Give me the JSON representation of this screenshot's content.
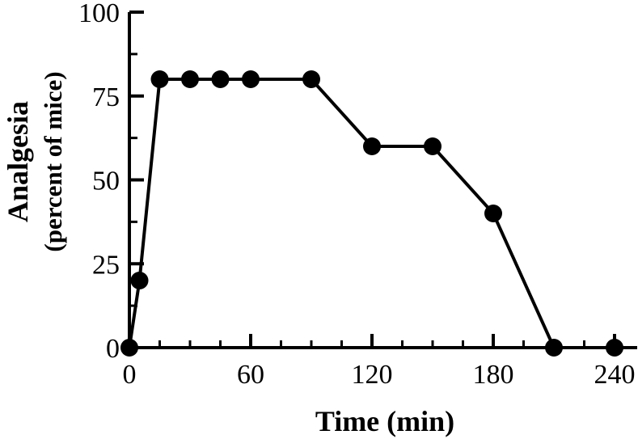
{
  "chart_data": {
    "type": "line",
    "xlabel": "Time (min)",
    "ylabel_line1": "Analgesia",
    "ylabel_line2": "(percent of mice)",
    "xlim": [
      0,
      240
    ],
    "ylim": [
      0,
      100
    ],
    "xticks": [
      0,
      60,
      120,
      180,
      240
    ],
    "yticks": [
      0,
      25,
      50,
      75,
      100
    ],
    "grid": false,
    "series": [
      {
        "x": [
          0,
          5,
          15,
          30,
          45,
          60,
          90,
          120,
          150,
          180,
          210,
          240
        ],
        "y": [
          0,
          20,
          80,
          80,
          80,
          80,
          80,
          60,
          60,
          40,
          0,
          0
        ]
      }
    ]
  }
}
